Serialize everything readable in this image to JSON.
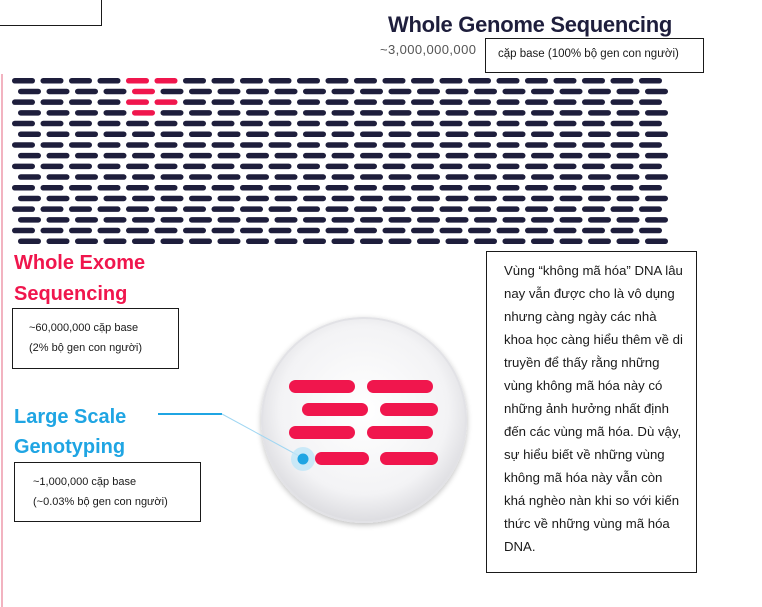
{
  "wgs": {
    "title": "Whole Genome Sequencing",
    "count": "~3,000,000,000",
    "note": "cặp base (100% bộ gen con người)",
    "color": "#1e1e3c"
  },
  "wes": {
    "title": "Whole Exome Sequencing",
    "count": "~60,000,000 cặp base",
    "percent": "(2% bộ gen con người)",
    "color": "#f0164d"
  },
  "lsg": {
    "title": "Large Scale Genotyping",
    "count": "~1,000,000 cặp base",
    "percent": "(~0.03% bộ gen con người)",
    "color": "#1fa5e3"
  },
  "callout": {
    "text": "Vùng “không mã hóa” DNA lâu nay vẫn được cho là vô dụng nhưng càng ngày các nhà khoa học càng hiểu thêm về di truyền để thấy rằng những vùng không mã hóa này có những ảnh hưởng nhất định đến các vùng mã hóa. Dù vậy, sự hiểu biết về những vùng không mã hóa này vẫn còn khá nghèo nàn khi so với kiến thức về những vùng mã hóa DNA."
  }
}
